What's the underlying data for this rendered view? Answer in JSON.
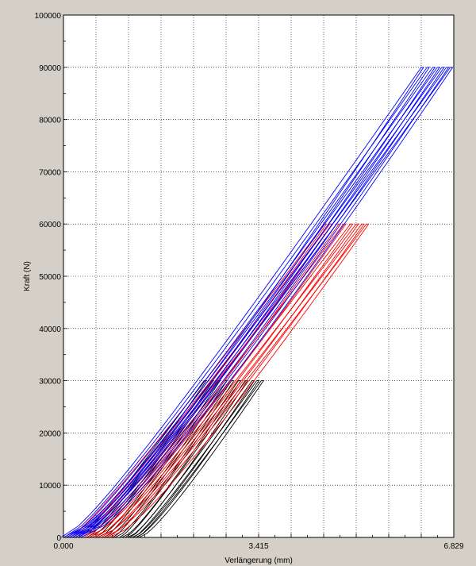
{
  "chart_data": {
    "type": "line",
    "title": "",
    "xlabel": "Verlängerung (mm)",
    "ylabel": "Kraft (N)",
    "xlim": [
      0,
      6.829
    ],
    "ylim": [
      0,
      100000
    ],
    "x_tick_labels": [
      {
        "value": 0,
        "label": "0.000"
      },
      {
        "value": 3.415,
        "label": "3.415"
      },
      {
        "value": 6.829,
        "label": "6.829"
      }
    ],
    "y_tick_labels": [
      {
        "value": 0,
        "label": "0"
      },
      {
        "value": 10000,
        "label": "10000"
      },
      {
        "value": 20000,
        "label": "20000"
      },
      {
        "value": 30000,
        "label": "30000"
      },
      {
        "value": 40000,
        "label": "40000"
      },
      {
        "value": 50000,
        "label": "50000"
      },
      {
        "value": 60000,
        "label": "60000"
      },
      {
        "value": 70000,
        "label": "70000"
      },
      {
        "value": 80000,
        "label": "80000"
      },
      {
        "value": 90000,
        "label": "90000"
      },
      {
        "value": 100000,
        "label": "100000"
      }
    ],
    "grid": true,
    "grid_style": "dotted",
    "legend": "none",
    "series_groups": [
      {
        "color": "#000000",
        "max_force": 30000,
        "curves": [
          {
            "x0": 0.3,
            "x_end": 2.5
          },
          {
            "x0": 0.45,
            "x_end": 2.62
          },
          {
            "x0": 0.6,
            "x_end": 2.74
          },
          {
            "x0": 0.75,
            "x_end": 2.86
          },
          {
            "x0": 0.9,
            "x_end": 2.98
          },
          {
            "x0": 1.02,
            "x_end": 3.1
          },
          {
            "x0": 1.12,
            "x_end": 3.22
          },
          {
            "x0": 1.2,
            "x_end": 3.34
          },
          {
            "x0": 1.26,
            "x_end": 3.42
          },
          {
            "x0": 1.32,
            "x_end": 3.5
          }
        ]
      },
      {
        "color": "#ff0000",
        "max_force": 60000,
        "curves": [
          {
            "x0": 0.1,
            "x_end": 4.6
          },
          {
            "x0": 0.2,
            "x_end": 4.7
          },
          {
            "x0": 0.3,
            "x_end": 4.82
          },
          {
            "x0": 0.4,
            "x_end": 4.94
          },
          {
            "x0": 0.5,
            "x_end": 5.06
          },
          {
            "x0": 0.6,
            "x_end": 5.16
          },
          {
            "x0": 0.7,
            "x_end": 5.26
          },
          {
            "x0": 0.8,
            "x_end": 5.34
          }
        ]
      },
      {
        "color": "#0000ff",
        "max_force": 90000,
        "curves": [
          {
            "x0": 0.0,
            "x_end": 6.3
          },
          {
            "x0": 0.05,
            "x_end": 6.4
          },
          {
            "x0": 0.1,
            "x_end": 6.5
          },
          {
            "x0": 0.15,
            "x_end": 6.58
          },
          {
            "x0": 0.2,
            "x_end": 6.66
          },
          {
            "x0": 0.25,
            "x_end": 6.74
          },
          {
            "x0": 0.3,
            "x_end": 6.81
          }
        ]
      }
    ]
  }
}
